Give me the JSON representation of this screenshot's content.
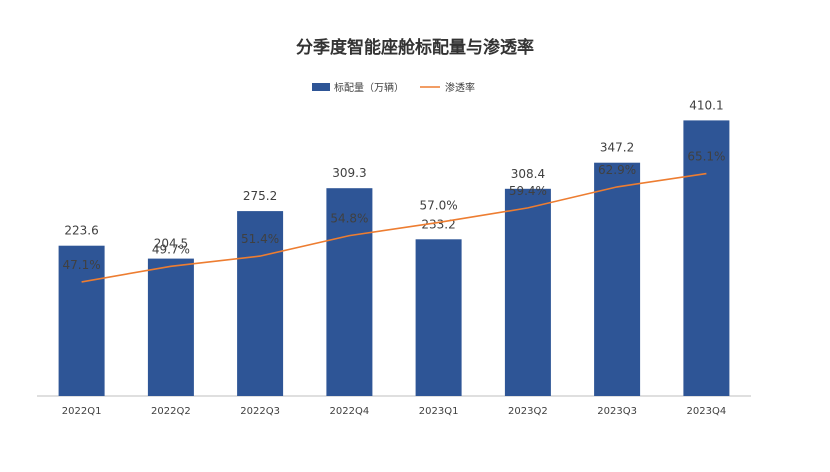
{
  "chart_data": {
    "type": "bar",
    "title": "分季度智能座舱标配量与渗透率",
    "categories": [
      "2022Q1",
      "2022Q2",
      "2022Q3",
      "2022Q4",
      "2023Q1",
      "2023Q2",
      "2023Q3",
      "2023Q4"
    ],
    "series": [
      {
        "name": "标配量（万辆）",
        "type": "bar",
        "values": [
          223.6,
          204.5,
          275.2,
          309.3,
          233.2,
          308.4,
          347.2,
          410.1
        ],
        "labels": [
          "223.6",
          "204.5",
          "275.2",
          "309.3",
          "233.2",
          "308.4",
          "347.2",
          "410.1"
        ]
      },
      {
        "name": "渗透率",
        "type": "line",
        "values": [
          47.1,
          49.7,
          51.4,
          54.8,
          57.0,
          59.4,
          62.9,
          65.1
        ],
        "labels": [
          "47.1%",
          "49.7%",
          "51.4%",
          "54.8%",
          "57.0%",
          "59.4%",
          "62.9%",
          "65.1%"
        ]
      }
    ],
    "ylim": [
      0,
      500
    ],
    "y2lim": [
      20,
      80
    ],
    "y_axis_visible": false,
    "grid": false,
    "legend": "top-center",
    "colors": {
      "bar": "#2e5596",
      "line": "#ed7d31",
      "axis": "#bfbfbf",
      "text": "#404040",
      "title": "#333333"
    }
  }
}
